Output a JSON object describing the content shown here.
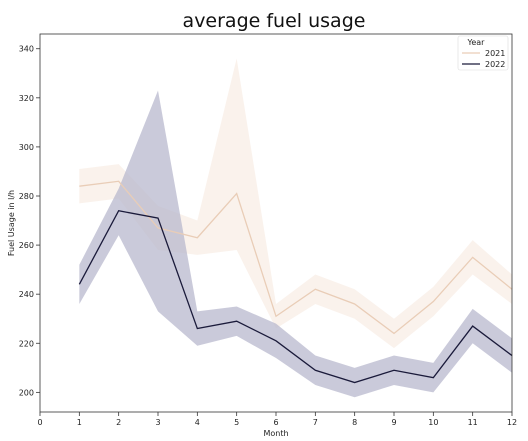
{
  "chart_data": {
    "type": "line",
    "title": "average fuel usage",
    "xlabel": "Month",
    "ylabel": "Fuel Usage in l/h",
    "xlim": [
      0,
      12
    ],
    "ylim": [
      192,
      346
    ],
    "x_ticks": [
      0,
      1,
      2,
      3,
      4,
      5,
      6,
      7,
      8,
      9,
      10,
      11,
      12
    ],
    "y_ticks": [
      200,
      220,
      240,
      260,
      280,
      300,
      320,
      340
    ],
    "grid": false,
    "legend": {
      "title": "Year",
      "placement": "top-right"
    },
    "series": [
      {
        "name": "2021",
        "color": "#e9cdb7",
        "band_color": "#f6e8dc",
        "x": [
          1,
          2,
          3,
          4,
          5,
          6,
          7,
          8,
          9,
          10,
          11,
          12
        ],
        "values": [
          284,
          286,
          267,
          263,
          281,
          231,
          242,
          236,
          224,
          237,
          255,
          242
        ],
        "lower": [
          277,
          279,
          258,
          256,
          258,
          226,
          236,
          230,
          218,
          231,
          248,
          236
        ],
        "upper": [
          291,
          293,
          276,
          270,
          336,
          236,
          248,
          242,
          230,
          243,
          262,
          248
        ]
      },
      {
        "name": "2022",
        "color": "#1a1a3a",
        "band_color": "#b8b8cd",
        "x": [
          1,
          2,
          3,
          4,
          5,
          6,
          7,
          8,
          9,
          10,
          11,
          12
        ],
        "values": [
          244,
          274,
          271,
          226,
          229,
          221,
          209,
          204,
          209,
          206,
          227,
          215
        ],
        "lower": [
          236,
          264,
          233,
          219,
          223,
          214,
          203,
          198,
          203,
          200,
          220,
          208
        ],
        "upper": [
          252,
          283,
          323,
          233,
          235,
          228,
          215,
          210,
          215,
          212,
          234,
          222
        ]
      }
    ]
  }
}
